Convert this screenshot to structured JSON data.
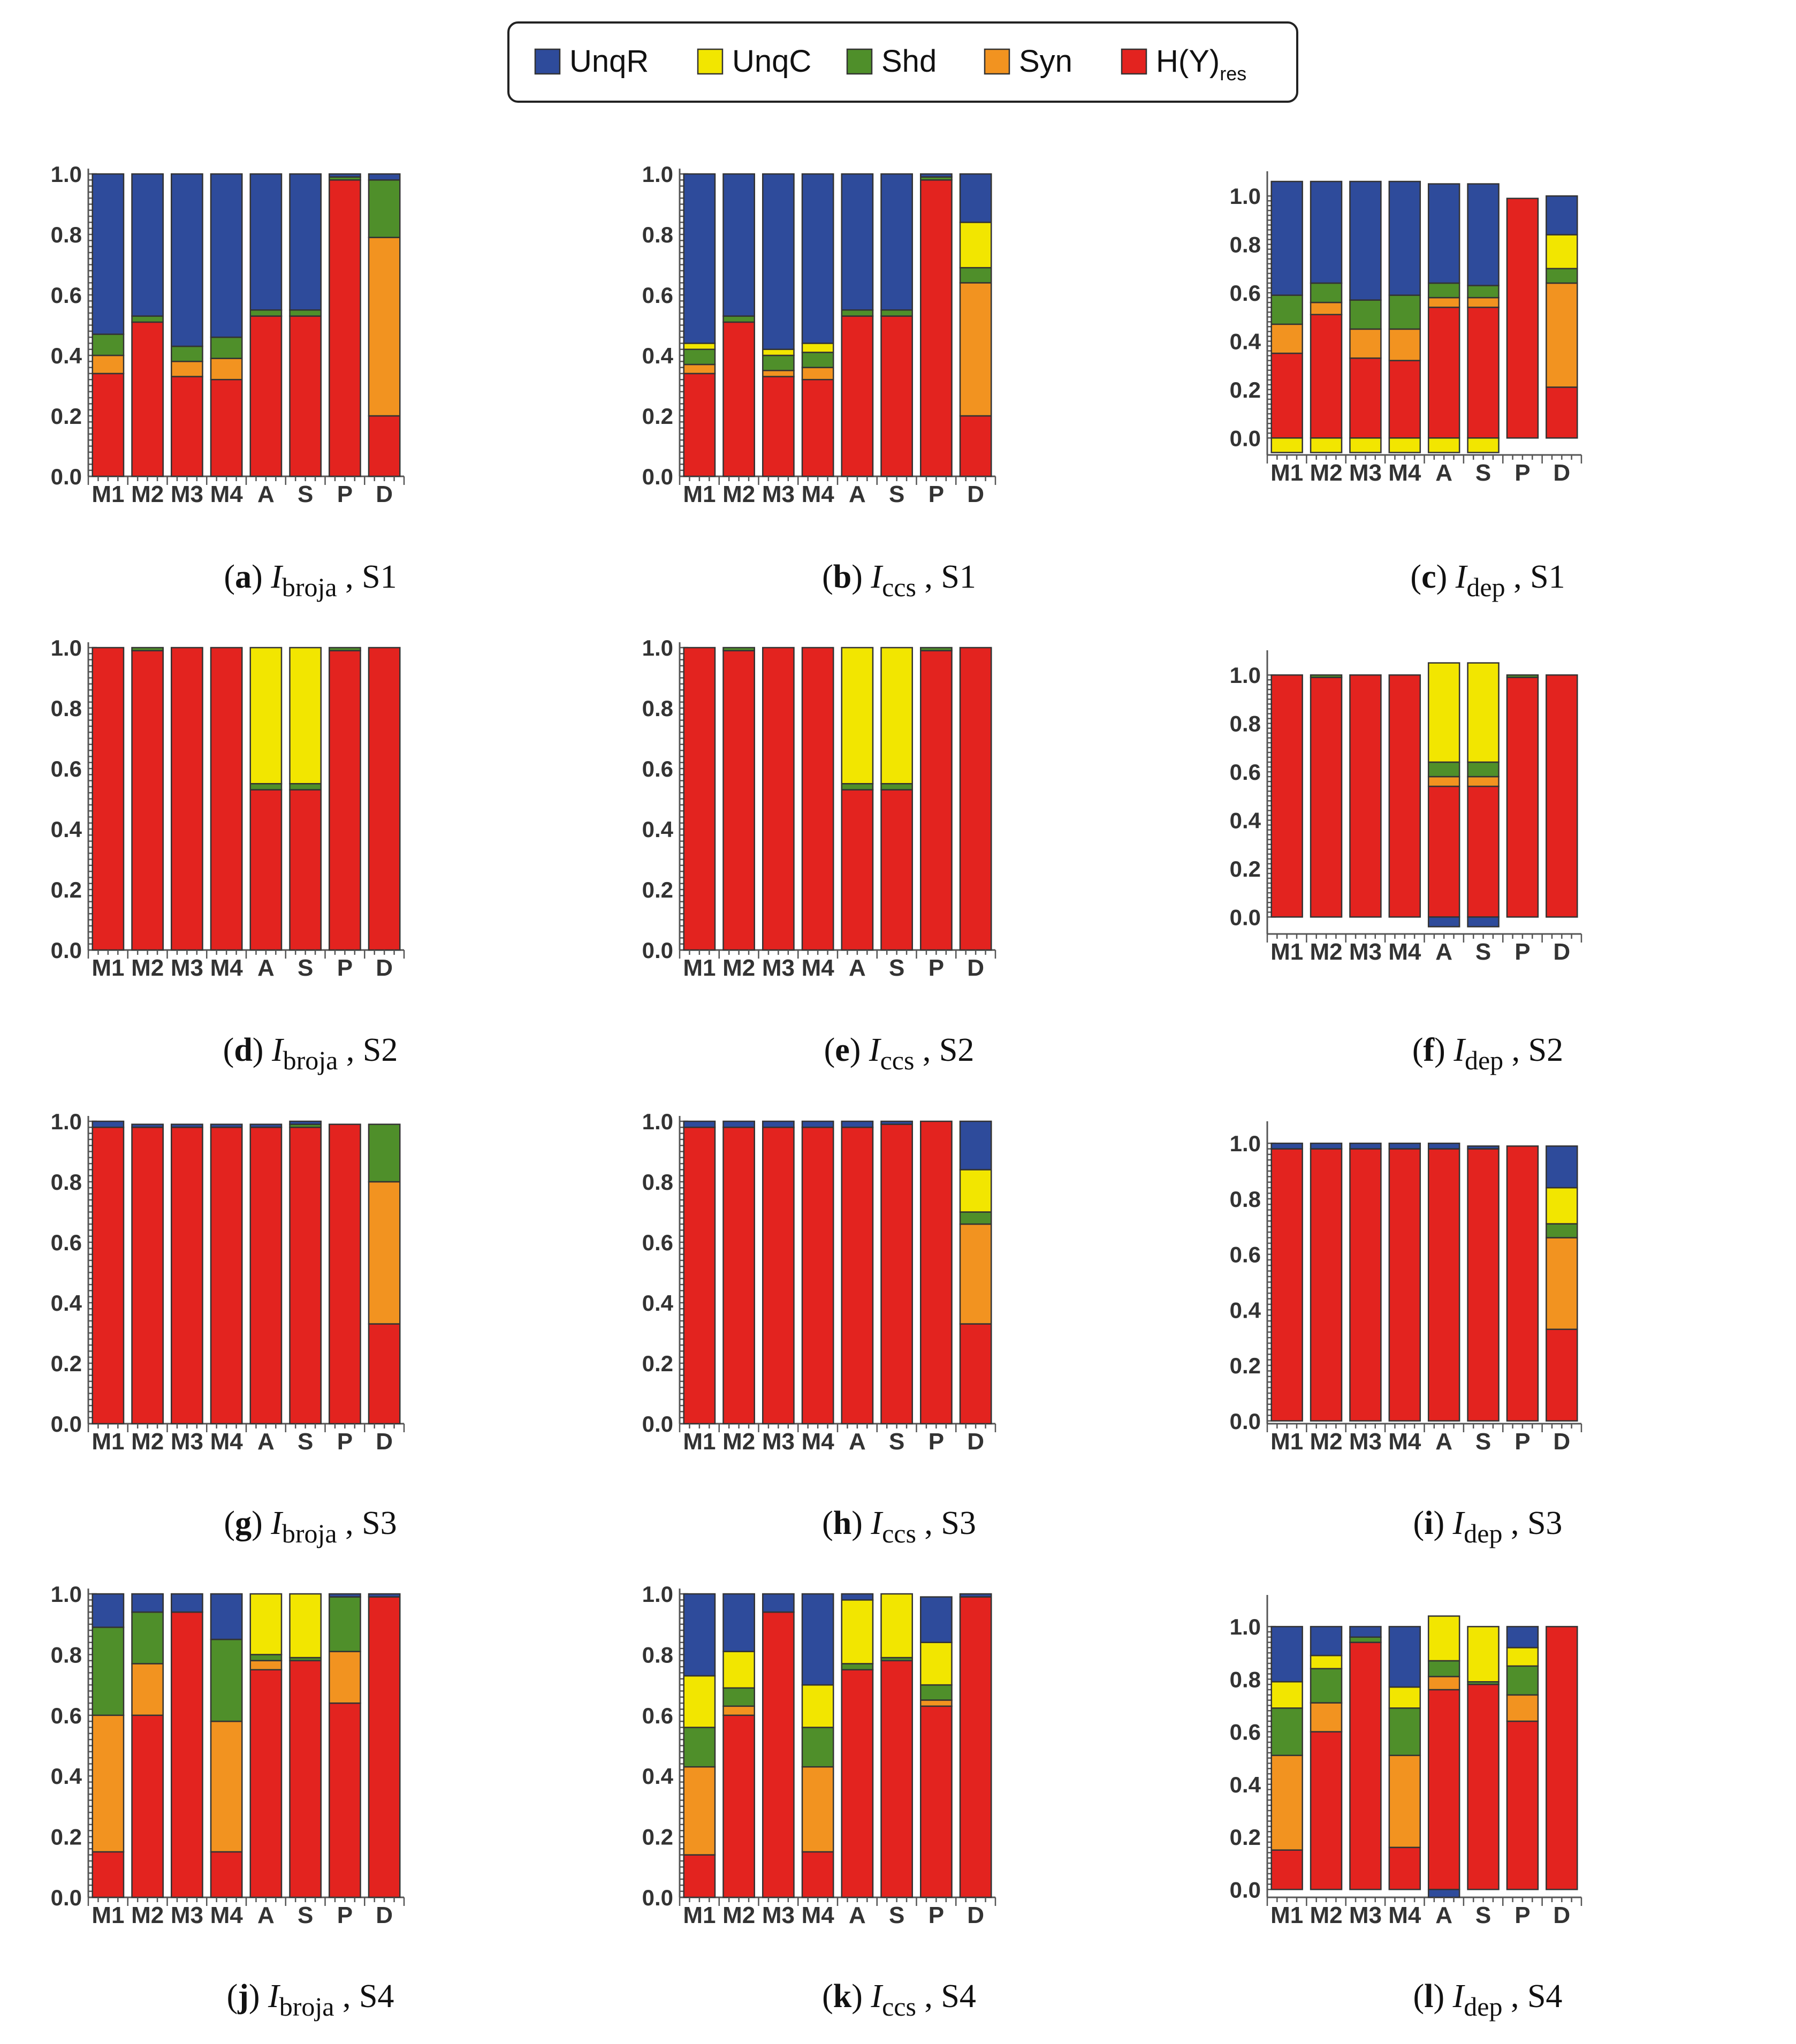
{
  "legend": [
    {
      "key": "UnqR",
      "label": "UnqR",
      "color": "#2E4B9B"
    },
    {
      "key": "UnqC",
      "label": "UnqC",
      "color": "#F2E600"
    },
    {
      "key": "Shd",
      "label": "Shd",
      "color": "#4F8F2A"
    },
    {
      "key": "Syn",
      "label": "Syn",
      "color": "#F29320"
    },
    {
      "key": "Res",
      "label": "H(Y)",
      "label_sub": "res",
      "color": "#E3231F"
    }
  ],
  "chart_data": [
    {
      "type": "bar",
      "stacked": true,
      "panel_letter": "a",
      "measure": "broja",
      "scenario": "S1",
      "categories": [
        "M1",
        "M2",
        "M3",
        "M4",
        "A",
        "S",
        "P",
        "D"
      ],
      "ylim": [
        0,
        1.0
      ],
      "ytick_labels": [
        "0.0",
        "0.2",
        "0.4",
        "0.6",
        "0.8",
        "1.0"
      ],
      "series": [
        {
          "name": "H(Y)res",
          "values": [
            0.34,
            0.51,
            0.33,
            0.32,
            0.53,
            0.53,
            0.98,
            0.2
          ]
        },
        {
          "name": "Syn",
          "values": [
            0.06,
            0,
            0.05,
            0.07,
            0,
            0,
            0,
            0.59
          ]
        },
        {
          "name": "Shd",
          "values": [
            0.07,
            0.02,
            0.05,
            0.07,
            0.02,
            0.02,
            0.01,
            0.19
          ]
        },
        {
          "name": "UnqC",
          "values": [
            0,
            0,
            0,
            0,
            0,
            0,
            0,
            0
          ]
        },
        {
          "name": "UnqR",
          "values": [
            0.53,
            0.47,
            0.57,
            0.54,
            0.45,
            0.45,
            0.01,
            0.02
          ]
        }
      ]
    },
    {
      "type": "bar",
      "stacked": true,
      "panel_letter": "b",
      "measure": "ccs",
      "scenario": "S1",
      "categories": [
        "M1",
        "M2",
        "M3",
        "M4",
        "A",
        "S",
        "P",
        "D"
      ],
      "ylim": [
        0,
        1.0
      ],
      "ytick_labels": [
        "0.0",
        "0.2",
        "0.4",
        "0.6",
        "0.8",
        "1.0"
      ],
      "series": [
        {
          "name": "H(Y)res",
          "values": [
            0.34,
            0.51,
            0.33,
            0.32,
            0.53,
            0.53,
            0.98,
            0.2
          ]
        },
        {
          "name": "Syn",
          "values": [
            0.03,
            0,
            0.02,
            0.04,
            0,
            0,
            0,
            0.44
          ]
        },
        {
          "name": "Shd",
          "values": [
            0.05,
            0.02,
            0.05,
            0.05,
            0.02,
            0.02,
            0.01,
            0.05
          ]
        },
        {
          "name": "UnqC",
          "values": [
            0.02,
            0,
            0.02,
            0.03,
            0,
            0,
            0,
            0.15
          ]
        },
        {
          "name": "UnqR",
          "values": [
            0.56,
            0.47,
            0.58,
            0.56,
            0.45,
            0.45,
            0.01,
            0.16
          ]
        }
      ]
    },
    {
      "type": "bar",
      "stacked": true,
      "panel_letter": "c",
      "measure": "dep",
      "scenario": "S1",
      "categories": [
        "M1",
        "M2",
        "M3",
        "M4",
        "A",
        "S",
        "P",
        "D"
      ],
      "ylim": [
        -0.07,
        1.08
      ],
      "ytick_labels": [
        "0.0",
        "0.2",
        "0.4",
        "0.6",
        "0.8",
        "1.0"
      ],
      "series": [
        {
          "name": "H(Y)res",
          "values": [
            0.35,
            0.51,
            0.33,
            0.32,
            0.54,
            0.54,
            0.99,
            0.21
          ]
        },
        {
          "name": "Syn",
          "values": [
            0.12,
            0.05,
            0.12,
            0.13,
            0.04,
            0.04,
            0,
            0.43
          ]
        },
        {
          "name": "Shd",
          "values": [
            0.12,
            0.08,
            0.12,
            0.14,
            0.06,
            0.05,
            0,
            0.06
          ]
        },
        {
          "name": "UnqC",
          "values": [
            -0.06,
            -0.06,
            -0.06,
            -0.06,
            -0.06,
            -0.06,
            0,
            0.14
          ]
        },
        {
          "name": "UnqR",
          "values": [
            0.47,
            0.42,
            0.49,
            0.47,
            0.41,
            0.42,
            0,
            0.16
          ]
        }
      ]
    },
    {
      "type": "bar",
      "stacked": true,
      "panel_letter": "d",
      "measure": "broja",
      "scenario": "S2",
      "categories": [
        "M1",
        "M2",
        "M3",
        "M4",
        "A",
        "S",
        "P",
        "D"
      ],
      "ylim": [
        0,
        1.0
      ],
      "ytick_labels": [
        "0.0",
        "0.2",
        "0.4",
        "0.6",
        "0.8",
        "1.0"
      ],
      "series": [
        {
          "name": "H(Y)res",
          "values": [
            1.0,
            0.99,
            1.0,
            1.0,
            0.53,
            0.53,
            0.99,
            1.0
          ]
        },
        {
          "name": "Syn",
          "values": [
            0,
            0,
            0,
            0,
            0,
            0,
            0,
            0
          ]
        },
        {
          "name": "Shd",
          "values": [
            0,
            0.01,
            0,
            0,
            0.02,
            0.02,
            0.01,
            0
          ]
        },
        {
          "name": "UnqC",
          "values": [
            0,
            0,
            0,
            0,
            0.45,
            0.45,
            0,
            0
          ]
        },
        {
          "name": "UnqR",
          "values": [
            0,
            0,
            0,
            0,
            0,
            0,
            0,
            0
          ]
        }
      ]
    },
    {
      "type": "bar",
      "stacked": true,
      "panel_letter": "e",
      "measure": "ccs",
      "scenario": "S2",
      "categories": [
        "M1",
        "M2",
        "M3",
        "M4",
        "A",
        "S",
        "P",
        "D"
      ],
      "ylim": [
        0,
        1.0
      ],
      "ytick_labels": [
        "0.0",
        "0.2",
        "0.4",
        "0.6",
        "0.8",
        "1.0"
      ],
      "series": [
        {
          "name": "H(Y)res",
          "values": [
            1.0,
            0.99,
            1.0,
            1.0,
            0.53,
            0.53,
            0.99,
            1.0
          ]
        },
        {
          "name": "Syn",
          "values": [
            0,
            0,
            0,
            0,
            0,
            0,
            0,
            0
          ]
        },
        {
          "name": "Shd",
          "values": [
            0,
            0.01,
            0,
            0,
            0.02,
            0.02,
            0.01,
            0
          ]
        },
        {
          "name": "UnqC",
          "values": [
            0,
            0,
            0,
            0,
            0.45,
            0.45,
            0,
            0
          ]
        },
        {
          "name": "UnqR",
          "values": [
            0,
            0,
            0,
            0,
            0,
            0,
            0,
            0
          ]
        }
      ]
    },
    {
      "type": "bar",
      "stacked": true,
      "panel_letter": "f",
      "measure": "dep",
      "scenario": "S2",
      "categories": [
        "M1",
        "M2",
        "M3",
        "M4",
        "A",
        "S",
        "P",
        "D"
      ],
      "ylim": [
        -0.07,
        1.08
      ],
      "ytick_labels": [
        "0.0",
        "0.2",
        "0.4",
        "0.6",
        "0.8",
        "1.0"
      ],
      "series": [
        {
          "name": "H(Y)res",
          "values": [
            1.0,
            0.99,
            1.0,
            1.0,
            0.54,
            0.54,
            0.99,
            1.0
          ]
        },
        {
          "name": "Syn",
          "values": [
            0,
            0,
            0,
            0,
            0.04,
            0.04,
            0,
            0
          ]
        },
        {
          "name": "Shd",
          "values": [
            0,
            0.01,
            0,
            0,
            0.06,
            0.06,
            0.01,
            0
          ]
        },
        {
          "name": "UnqC",
          "values": [
            0,
            0,
            0,
            0,
            0.41,
            0.41,
            0,
            0
          ]
        },
        {
          "name": "UnqR",
          "values": [
            0,
            0,
            0,
            0,
            -0.04,
            -0.04,
            0,
            0
          ]
        }
      ]
    },
    {
      "type": "bar",
      "stacked": true,
      "panel_letter": "g",
      "measure": "broja",
      "scenario": "S3",
      "categories": [
        "M1",
        "M2",
        "M3",
        "M4",
        "A",
        "S",
        "P",
        "D"
      ],
      "ylim": [
        0,
        1.0
      ],
      "ytick_labels": [
        "0.0",
        "0.2",
        "0.4",
        "0.6",
        "0.8",
        "1.0"
      ],
      "series": [
        {
          "name": "H(Y)res",
          "values": [
            0.98,
            0.98,
            0.98,
            0.98,
            0.98,
            0.98,
            0.99,
            0.33
          ]
        },
        {
          "name": "Syn",
          "values": [
            0,
            0,
            0,
            0,
            0,
            0,
            0,
            0.47
          ]
        },
        {
          "name": "Shd",
          "values": [
            0,
            0,
            0,
            0,
            0,
            0.01,
            0,
            0.19
          ]
        },
        {
          "name": "UnqC",
          "values": [
            0,
            0,
            0,
            0,
            0,
            0,
            0,
            0
          ]
        },
        {
          "name": "UnqR",
          "values": [
            0.02,
            0.01,
            0.01,
            0.01,
            0.01,
            0.01,
            0,
            0
          ]
        }
      ]
    },
    {
      "type": "bar",
      "stacked": true,
      "panel_letter": "h",
      "measure": "ccs",
      "scenario": "S3",
      "categories": [
        "M1",
        "M2",
        "M3",
        "M4",
        "A",
        "S",
        "P",
        "D"
      ],
      "ylim": [
        0,
        1.0
      ],
      "ytick_labels": [
        "0.0",
        "0.2",
        "0.4",
        "0.6",
        "0.8",
        "1.0"
      ],
      "series": [
        {
          "name": "H(Y)res",
          "values": [
            0.98,
            0.98,
            0.98,
            0.98,
            0.98,
            0.99,
            1.0,
            0.33
          ]
        },
        {
          "name": "Syn",
          "values": [
            0,
            0,
            0,
            0,
            0,
            0,
            0,
            0.33
          ]
        },
        {
          "name": "Shd",
          "values": [
            0,
            0,
            0,
            0,
            0,
            0,
            0,
            0.04
          ]
        },
        {
          "name": "UnqC",
          "values": [
            0,
            0,
            0,
            0,
            0,
            0,
            0,
            0.14
          ]
        },
        {
          "name": "UnqR",
          "values": [
            0.02,
            0.02,
            0.02,
            0.02,
            0.02,
            0.01,
            0,
            0.16
          ]
        }
      ]
    },
    {
      "type": "bar",
      "stacked": true,
      "panel_letter": "i",
      "measure": "dep",
      "scenario": "S3",
      "categories": [
        "M1",
        "M2",
        "M3",
        "M4",
        "A",
        "S",
        "P",
        "D"
      ],
      "ylim": [
        -0.01,
        1.06
      ],
      "ytick_labels": [
        "0.0",
        "0.2",
        "0.4",
        "0.6",
        "0.8",
        "1.0"
      ],
      "series": [
        {
          "name": "H(Y)res",
          "values": [
            0.98,
            0.98,
            0.98,
            0.98,
            0.98,
            0.98,
            0.99,
            0.33
          ]
        },
        {
          "name": "Syn",
          "values": [
            0,
            0,
            0,
            0,
            0,
            0,
            0,
            0.33
          ]
        },
        {
          "name": "Shd",
          "values": [
            0,
            0,
            0,
            0,
            0,
            0,
            0,
            0.05
          ]
        },
        {
          "name": "UnqC",
          "values": [
            0,
            0,
            0,
            0,
            0,
            0,
            0,
            0.13
          ]
        },
        {
          "name": "UnqR",
          "values": [
            0.02,
            0.02,
            0.02,
            0.02,
            0.02,
            0.01,
            0,
            0.15
          ]
        }
      ]
    },
    {
      "type": "bar",
      "stacked": true,
      "panel_letter": "j",
      "measure": "broja",
      "scenario": "S4",
      "categories": [
        "M1",
        "M2",
        "M3",
        "M4",
        "A",
        "S",
        "P",
        "D"
      ],
      "ylim": [
        0,
        1.0
      ],
      "ytick_labels": [
        "0.0",
        "0.2",
        "0.4",
        "0.6",
        "0.8",
        "1.0"
      ],
      "series": [
        {
          "name": "H(Y)res",
          "values": [
            0.15,
            0.6,
            0.94,
            0.15,
            0.75,
            0.78,
            0.64,
            0.99
          ]
        },
        {
          "name": "Syn",
          "values": [
            0.45,
            0.17,
            0,
            0.43,
            0.03,
            0,
            0.17,
            0
          ]
        },
        {
          "name": "Shd",
          "values": [
            0.29,
            0.17,
            0,
            0.27,
            0.02,
            0.01,
            0.18,
            0
          ]
        },
        {
          "name": "UnqC",
          "values": [
            0,
            0,
            0,
            0,
            0.2,
            0.21,
            0,
            0
          ]
        },
        {
          "name": "UnqR",
          "values": [
            0.11,
            0.06,
            0.06,
            0.15,
            0,
            0,
            0.01,
            0.01
          ]
        }
      ]
    },
    {
      "type": "bar",
      "stacked": true,
      "panel_letter": "k",
      "measure": "ccs",
      "scenario": "S4",
      "categories": [
        "M1",
        "M2",
        "M3",
        "M4",
        "A",
        "S",
        "P",
        "D"
      ],
      "ylim": [
        0,
        1.0
      ],
      "ytick_labels": [
        "0.0",
        "0.2",
        "0.4",
        "0.6",
        "0.8",
        "1.0"
      ],
      "series": [
        {
          "name": "H(Y)res",
          "values": [
            0.14,
            0.6,
            0.94,
            0.15,
            0.75,
            0.78,
            0.63,
            0.99
          ]
        },
        {
          "name": "Syn",
          "values": [
            0.29,
            0.03,
            0,
            0.28,
            0,
            0,
            0.02,
            0
          ]
        },
        {
          "name": "Shd",
          "values": [
            0.13,
            0.06,
            0,
            0.13,
            0.02,
            0.01,
            0.05,
            0
          ]
        },
        {
          "name": "UnqC",
          "values": [
            0.17,
            0.12,
            0,
            0.14,
            0.21,
            0.21,
            0.14,
            0
          ]
        },
        {
          "name": "UnqR",
          "values": [
            0.27,
            0.19,
            0.06,
            0.3,
            0.02,
            0,
            0.15,
            0.01
          ]
        }
      ]
    },
    {
      "type": "bar",
      "stacked": true,
      "panel_letter": "l",
      "measure": "dep",
      "scenario": "S4",
      "categories": [
        "M1",
        "M2",
        "M3",
        "M4",
        "A",
        "S",
        "P",
        "D"
      ],
      "ylim": [
        -0.03,
        1.1
      ],
      "ytick_labels": [
        "0.0",
        "0.2",
        "0.4",
        "0.6",
        "0.8",
        "1.0"
      ],
      "series": [
        {
          "name": "H(Y)res",
          "values": [
            0.15,
            0.6,
            0.94,
            0.16,
            0.76,
            0.78,
            0.64,
            1.0
          ]
        },
        {
          "name": "Syn",
          "values": [
            0.36,
            0.11,
            0,
            0.35,
            0.05,
            0,
            0.1,
            0
          ]
        },
        {
          "name": "Shd",
          "values": [
            0.18,
            0.13,
            0.02,
            0.18,
            0.06,
            0.01,
            0.11,
            0
          ]
        },
        {
          "name": "UnqC",
          "values": [
            0.1,
            0.05,
            0,
            0.08,
            0.17,
            0.21,
            0.07,
            0
          ]
        },
        {
          "name": "UnqR",
          "values": [
            0.21,
            0.11,
            0.04,
            0.23,
            -0.03,
            0,
            0.08,
            0
          ]
        }
      ]
    }
  ],
  "caption": {
    "symbol": "I",
    "subscripts": {
      "broja": "broja",
      "ccs": "ccs",
      "dep": "dep"
    },
    "separator": ","
  }
}
